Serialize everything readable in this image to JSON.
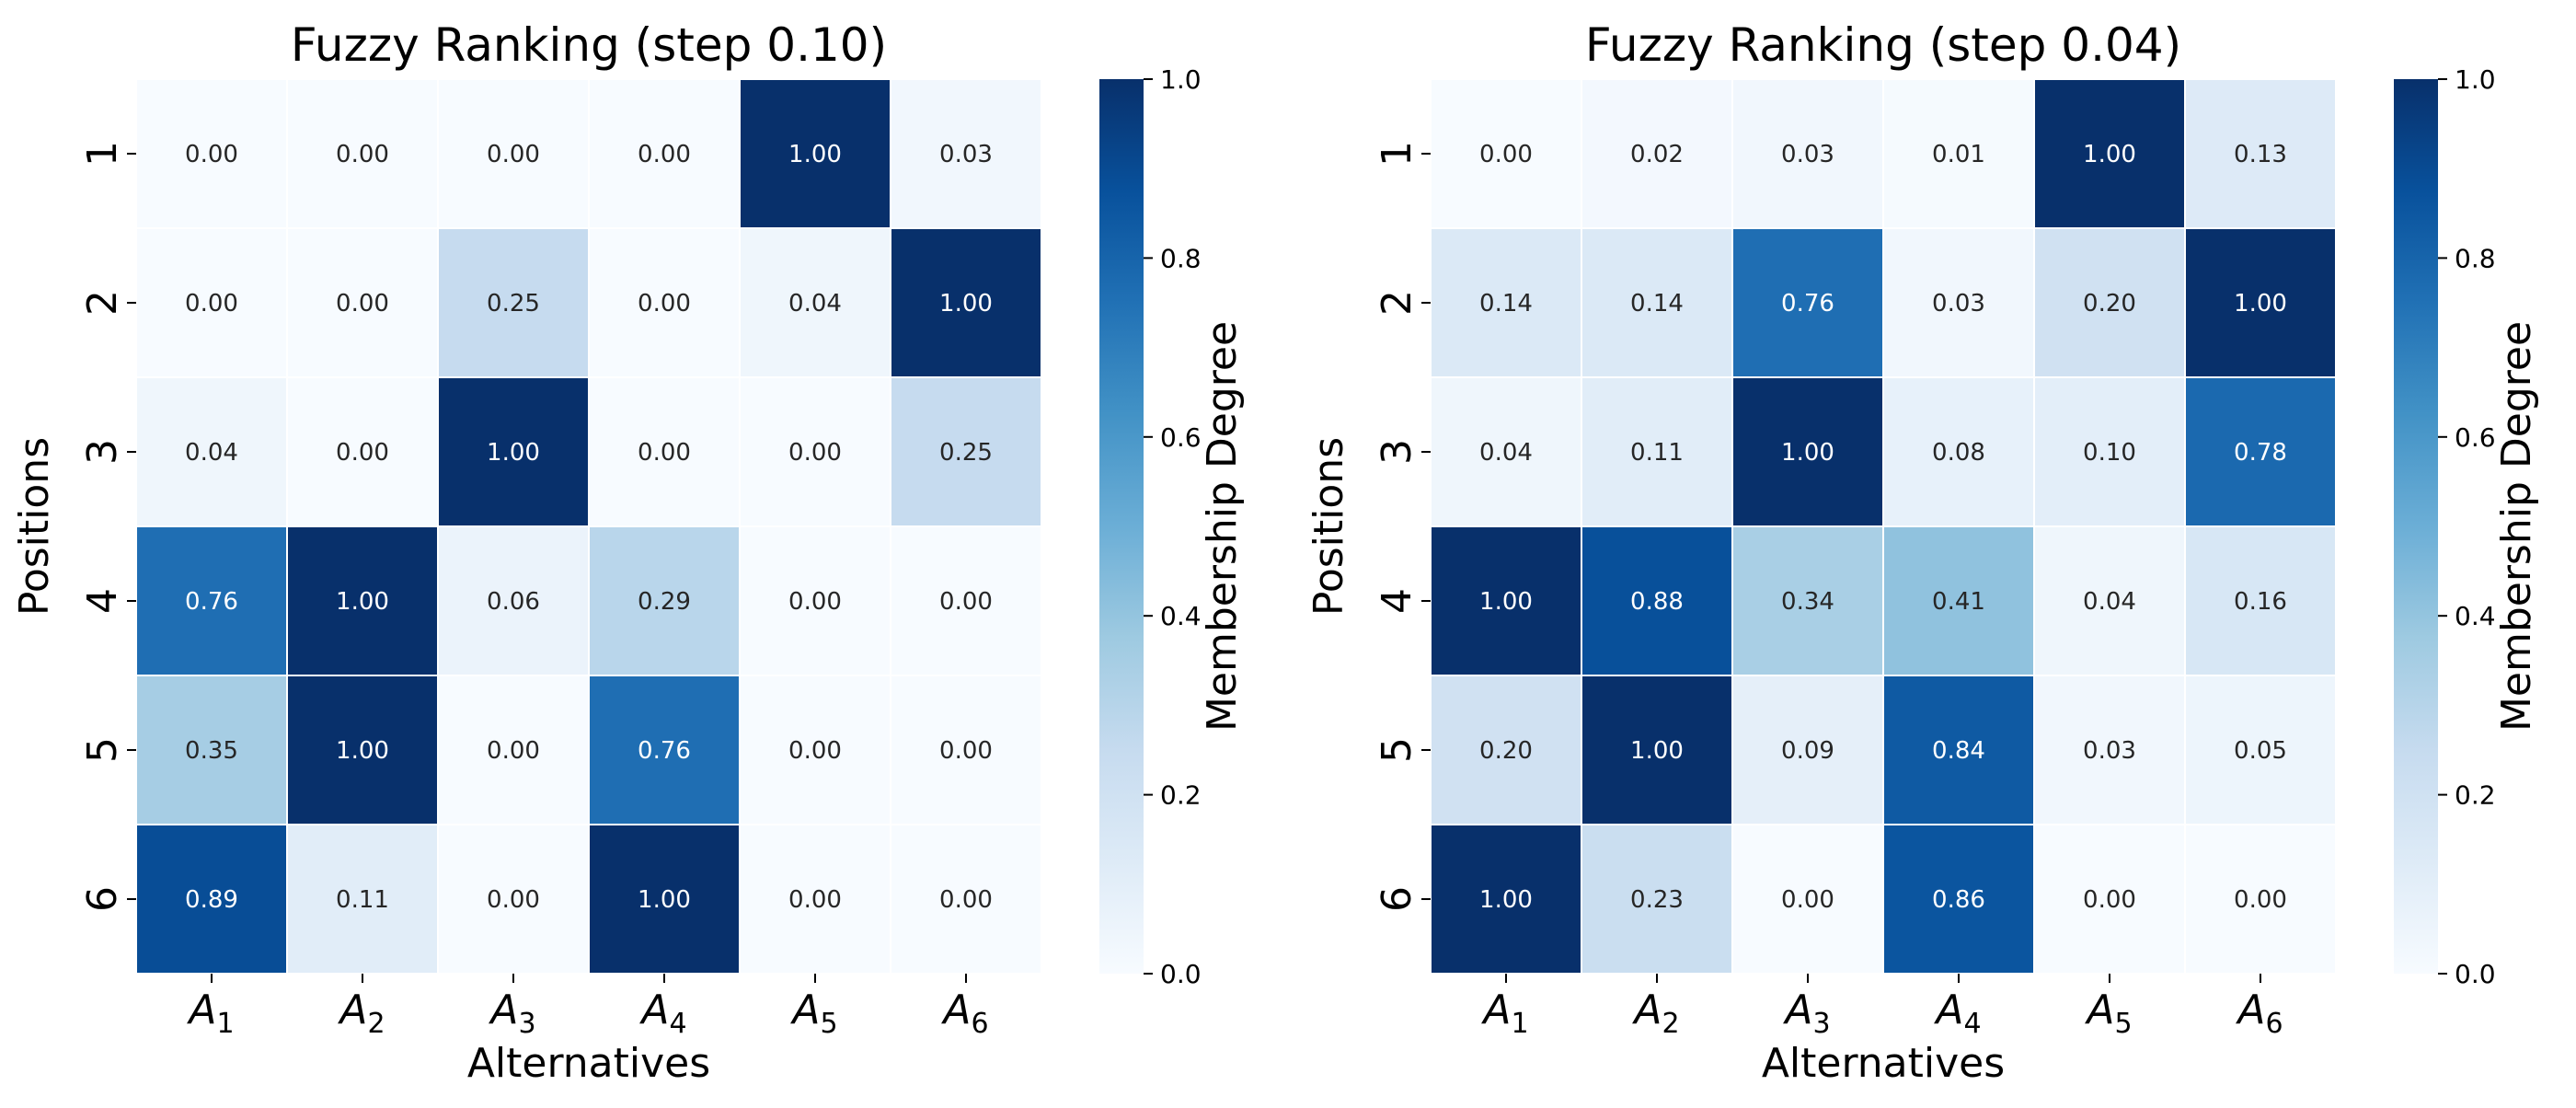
{
  "chart_data": [
    {
      "type": "heatmap",
      "title": "Fuzzy Ranking (step 0.10)",
      "xlabel": "Alternatives",
      "ylabel": "Positions",
      "x_tick_labels": [
        {
          "base": "A",
          "sub": "1"
        },
        {
          "base": "A",
          "sub": "2"
        },
        {
          "base": "A",
          "sub": "3"
        },
        {
          "base": "A",
          "sub": "4"
        },
        {
          "base": "A",
          "sub": "5"
        },
        {
          "base": "A",
          "sub": "6"
        }
      ],
      "y_tick_labels": [
        "1",
        "2",
        "3",
        "4",
        "5",
        "6"
      ],
      "values": [
        [
          0.0,
          0.0,
          0.0,
          0.0,
          1.0,
          0.03
        ],
        [
          0.0,
          0.0,
          0.25,
          0.0,
          0.04,
          1.0
        ],
        [
          0.04,
          0.0,
          1.0,
          0.0,
          0.0,
          0.25
        ],
        [
          0.76,
          1.0,
          0.06,
          0.29,
          0.0,
          0.0
        ],
        [
          0.35,
          1.0,
          0.0,
          0.76,
          0.0,
          0.0
        ],
        [
          0.89,
          0.11,
          0.0,
          1.0,
          0.0,
          0.0
        ]
      ],
      "colorbar": {
        "label": "Membership Degree",
        "range": [
          0,
          1
        ],
        "ticks": [
          "0.0",
          "0.2",
          "0.4",
          "0.6",
          "0.8",
          "1.0"
        ],
        "colormap": "Blues"
      },
      "grid": true
    },
    {
      "type": "heatmap",
      "title": "Fuzzy Ranking (step 0.04)",
      "xlabel": "Alternatives",
      "ylabel": "Positions",
      "x_tick_labels": [
        {
          "base": "A",
          "sub": "1"
        },
        {
          "base": "A",
          "sub": "2"
        },
        {
          "base": "A",
          "sub": "3"
        },
        {
          "base": "A",
          "sub": "4"
        },
        {
          "base": "A",
          "sub": "5"
        },
        {
          "base": "A",
          "sub": "6"
        }
      ],
      "y_tick_labels": [
        "1",
        "2",
        "3",
        "4",
        "5",
        "6"
      ],
      "values": [
        [
          0.0,
          0.02,
          0.03,
          0.01,
          1.0,
          0.13
        ],
        [
          0.14,
          0.14,
          0.76,
          0.03,
          0.2,
          1.0
        ],
        [
          0.04,
          0.11,
          1.0,
          0.08,
          0.1,
          0.78
        ],
        [
          1.0,
          0.88,
          0.34,
          0.41,
          0.04,
          0.16
        ],
        [
          0.2,
          1.0,
          0.09,
          0.84,
          0.03,
          0.05
        ],
        [
          1.0,
          0.23,
          0.0,
          0.86,
          0.0,
          0.0
        ]
      ],
      "colorbar": {
        "label": "Membership Degree",
        "range": [
          0,
          1
        ],
        "ticks": [
          "0.0",
          "0.2",
          "0.4",
          "0.6",
          "0.8",
          "1.0"
        ],
        "colormap": "Blues"
      },
      "grid": true
    }
  ]
}
